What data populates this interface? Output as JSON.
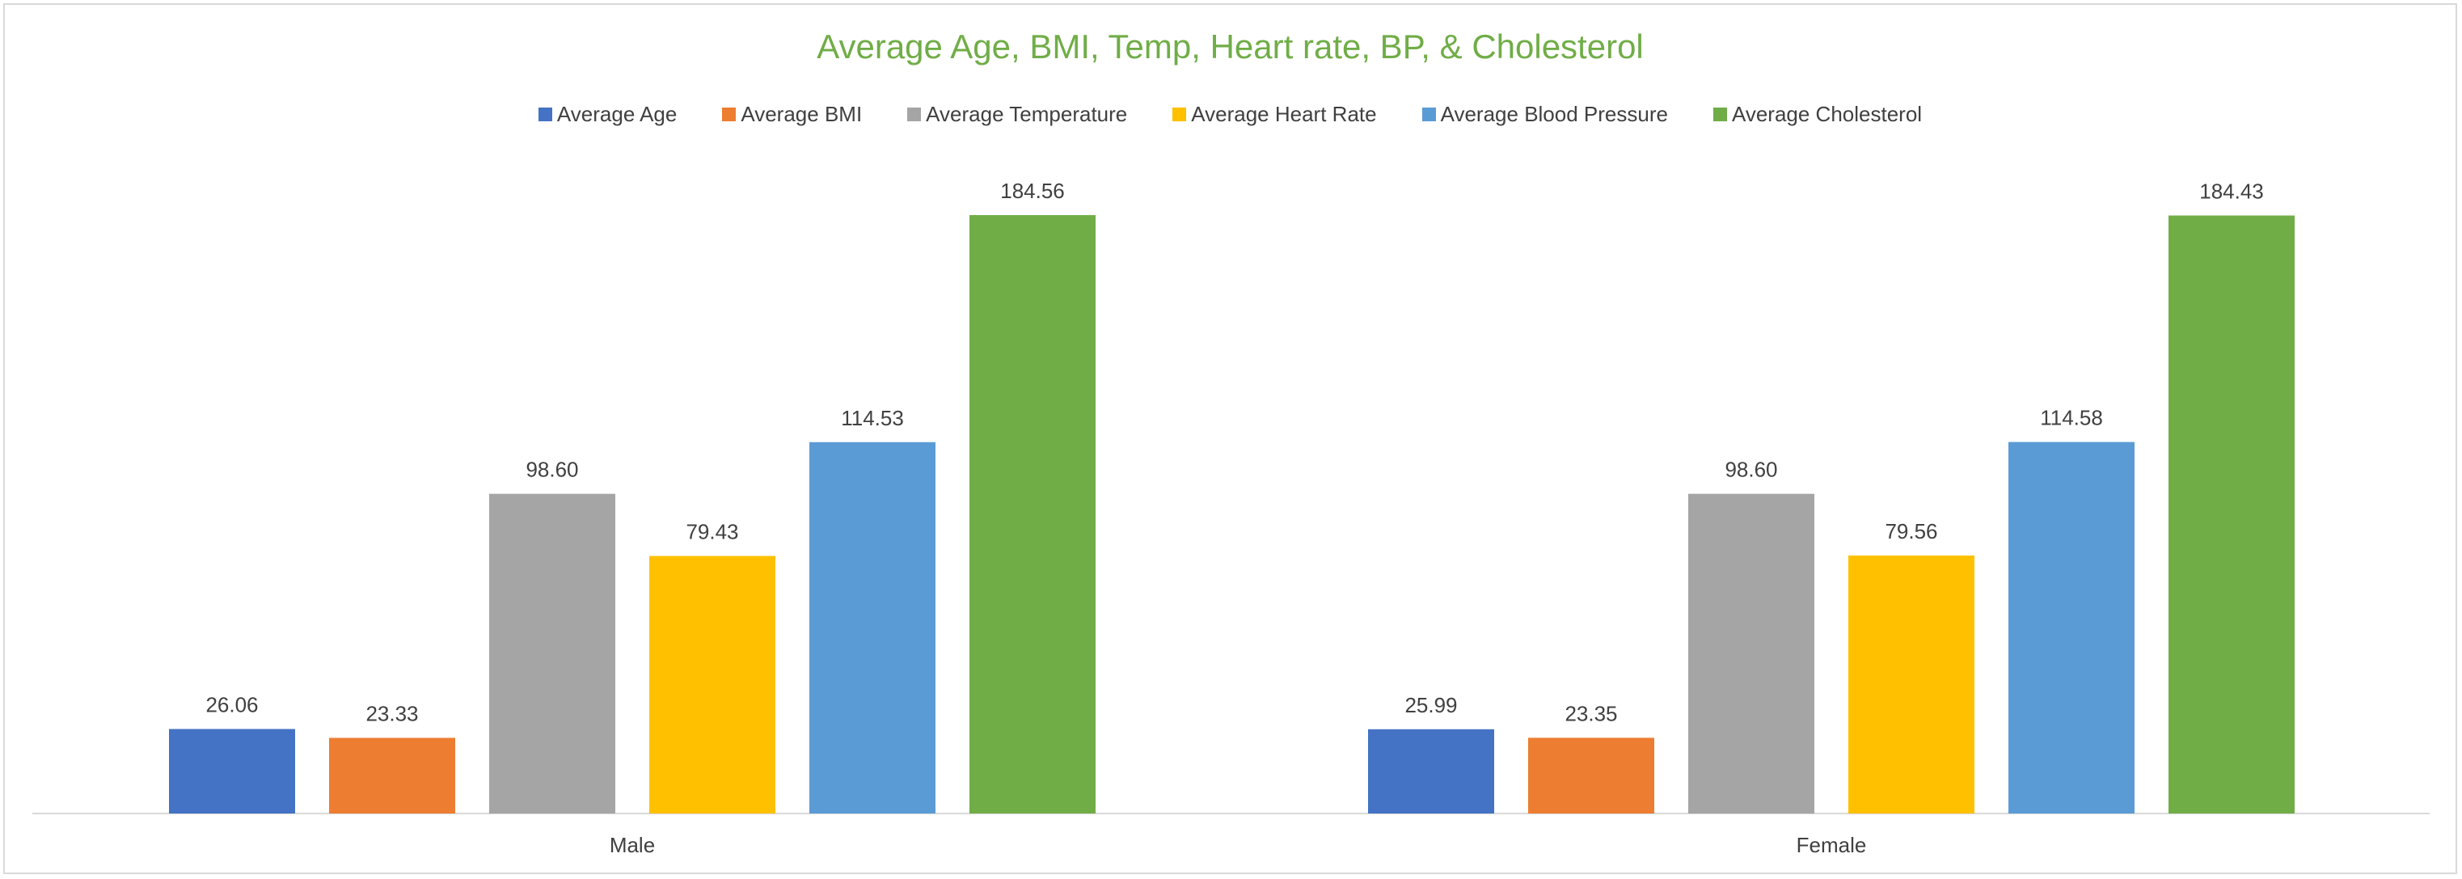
{
  "chart_data": {
    "type": "bar",
    "title": "Average Age, BMI, Temp, Heart rate, BP, & Cholesterol",
    "categories": [
      "Male",
      "Female"
    ],
    "series": [
      {
        "name": "Average Age",
        "color": "#4472c4",
        "values": [
          26.06,
          25.99
        ],
        "labels": [
          "26.06",
          "25.99"
        ]
      },
      {
        "name": "Average BMI",
        "color": "#ed7d31",
        "values": [
          23.33,
          23.35
        ],
        "labels": [
          "23.33",
          "23.35"
        ]
      },
      {
        "name": "Average Temperature",
        "color": "#a5a5a5",
        "values": [
          98.6,
          98.6
        ],
        "labels": [
          "98.60",
          "98.60"
        ]
      },
      {
        "name": "Average Heart Rate",
        "color": "#ffc000",
        "values": [
          79.43,
          79.56
        ],
        "labels": [
          "79.43",
          "79.56"
        ]
      },
      {
        "name": "Average Blood Pressure",
        "color": "#5b9bd5",
        "values": [
          114.53,
          114.58
        ],
        "labels": [
          "114.53",
          "114.58"
        ]
      },
      {
        "name": "Average Cholesterol",
        "color": "#70ad47",
        "values": [
          184.56,
          184.43
        ],
        "labels": [
          "184.56",
          "184.43"
        ]
      }
    ],
    "xlabel": "",
    "ylabel": "",
    "ylim": [
      0,
      184.56
    ],
    "grid": false,
    "legend_position": "top"
  },
  "colors": {
    "title": "#70ad47",
    "axis_line": "#d9d9d9",
    "text": "#404040"
  }
}
